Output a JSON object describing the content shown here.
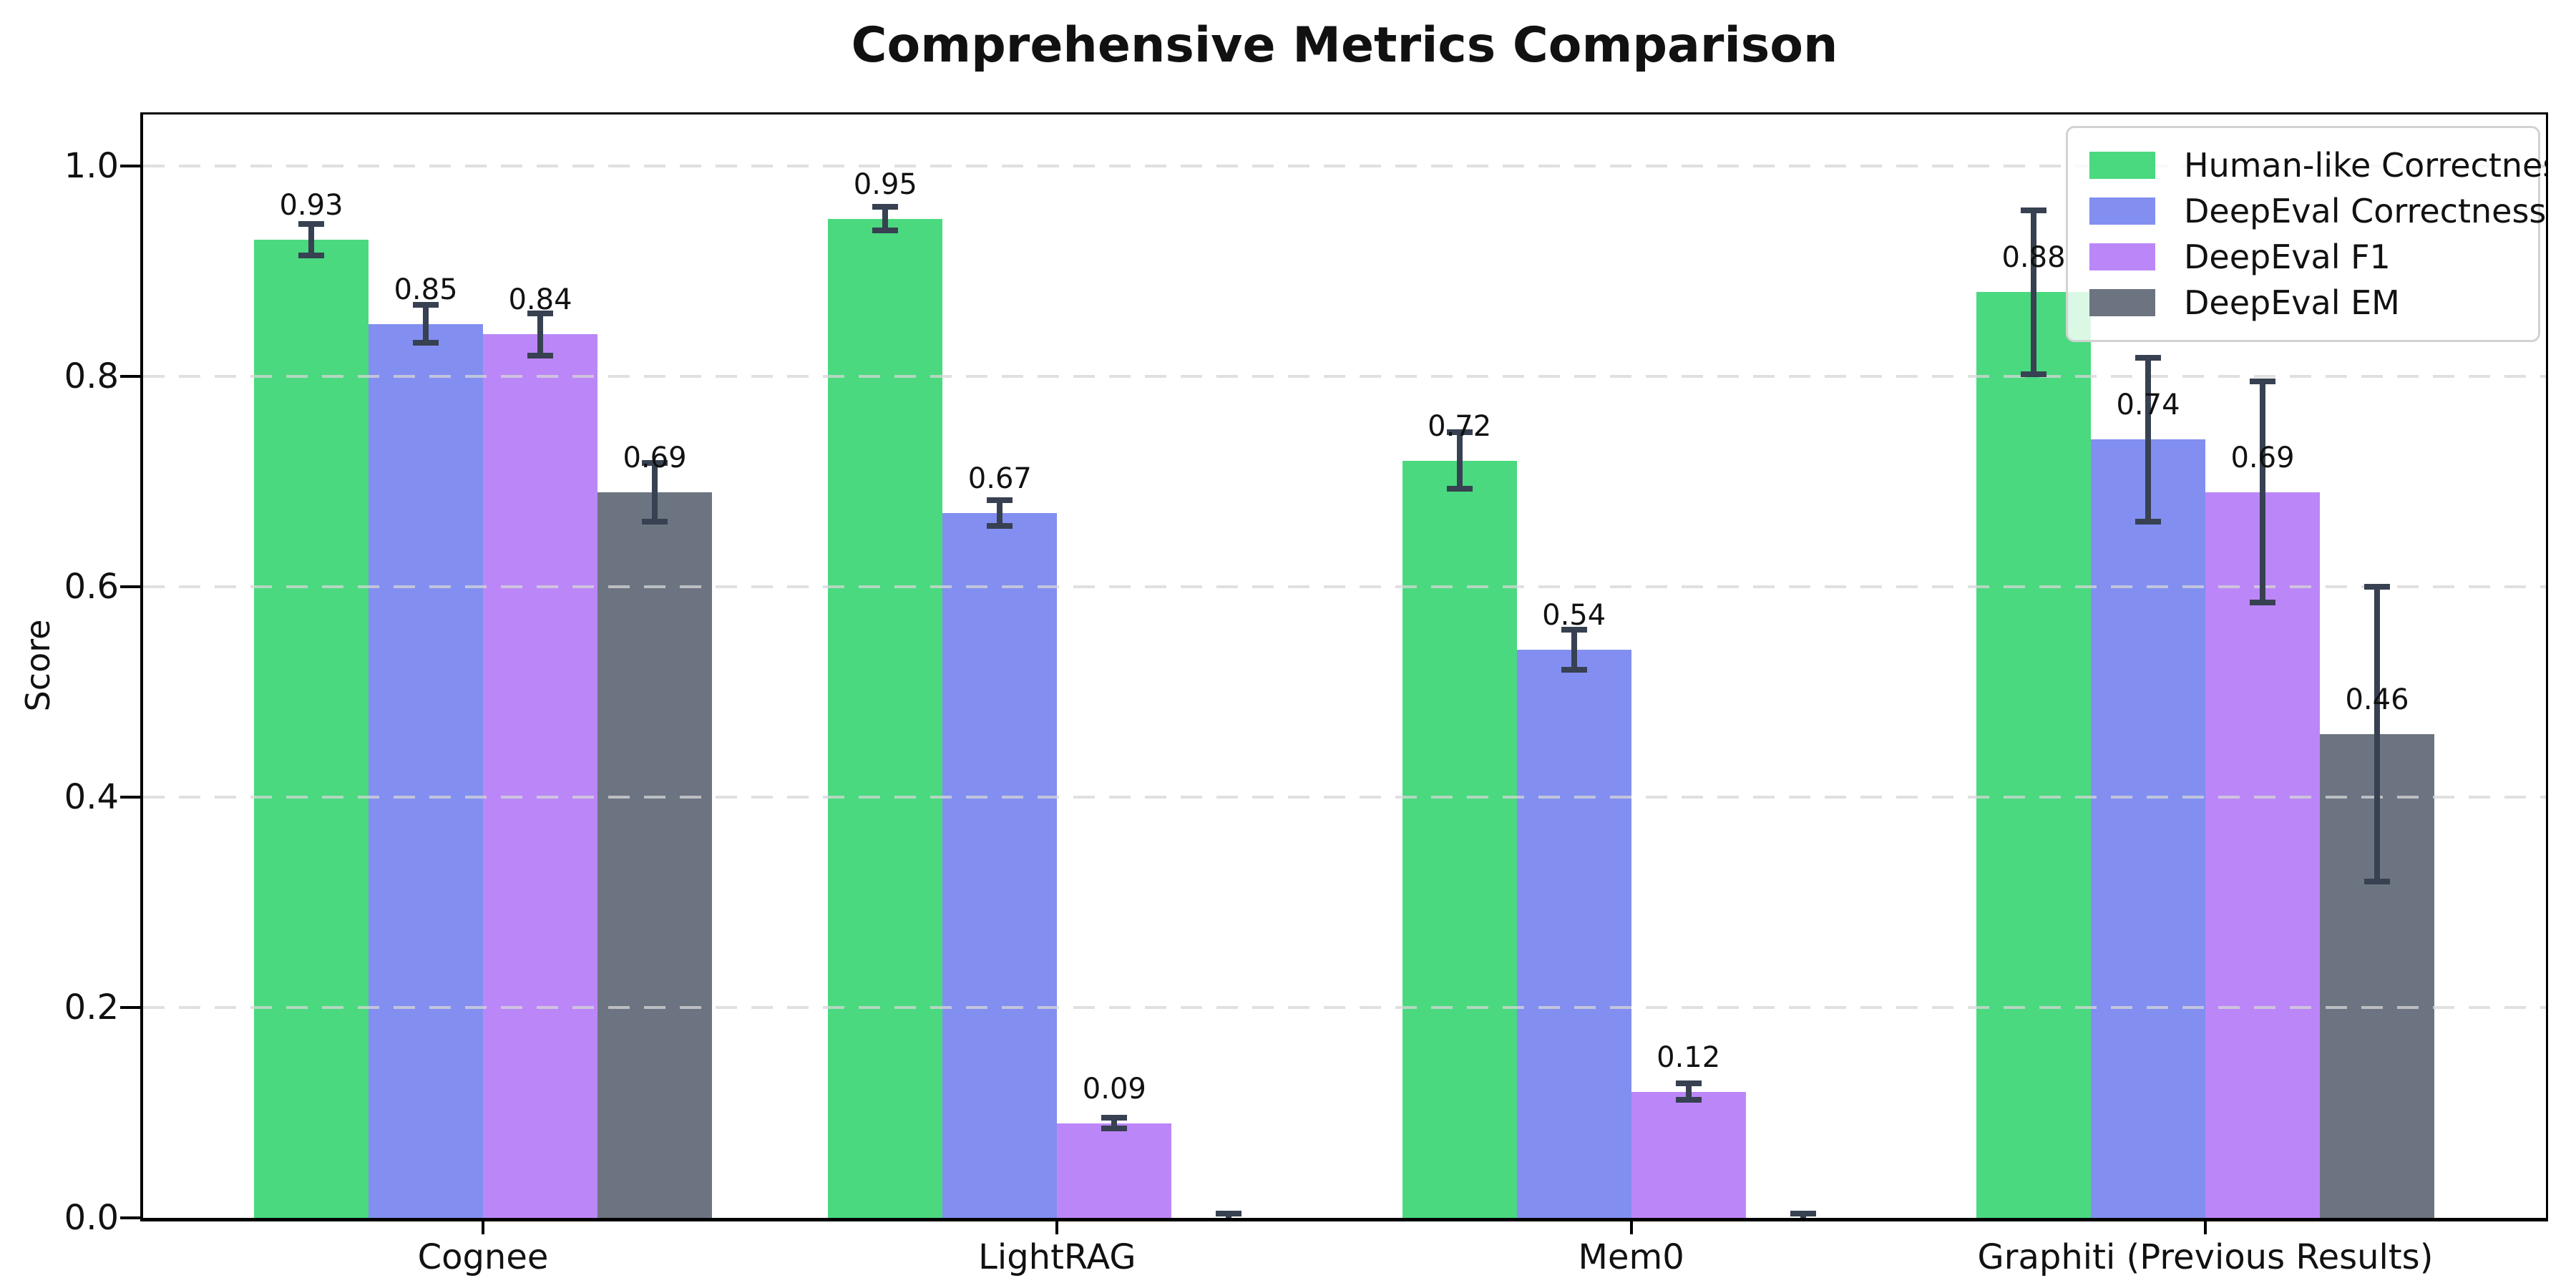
{
  "chart_data": {
    "type": "bar",
    "title": "Comprehensive Metrics Comparison",
    "ylabel": "Score",
    "xlabel": "",
    "categories": [
      "Cognee",
      "LightRAG",
      "Mem0",
      "Graphiti (Previous Results)"
    ],
    "series": [
      {
        "name": "Human-like Correctness",
        "color": "#4ad97f",
        "values": [
          0.93,
          0.95,
          0.72,
          0.88
        ],
        "errors": [
          0.015,
          0.011,
          0.027,
          0.078
        ],
        "labels": [
          "0.93",
          "0.95",
          "0.72",
          "0.88"
        ]
      },
      {
        "name": "DeepEval Correctness",
        "color": "#828ff0",
        "values": [
          0.85,
          0.67,
          0.54,
          0.74
        ],
        "errors": [
          0.018,
          0.012,
          0.019,
          0.078
        ],
        "labels": [
          "0.85",
          "0.67",
          "0.54",
          "0.74"
        ]
      },
      {
        "name": "DeepEval F1",
        "color": "#bb87f8",
        "values": [
          0.84,
          0.09,
          0.12,
          0.69
        ],
        "errors": [
          0.02,
          0.005,
          0.008,
          0.105
        ],
        "labels": [
          "0.84",
          "0.09",
          "0.12",
          "0.69"
        ]
      },
      {
        "name": "DeepEval EM",
        "color": "#6c7482",
        "values": [
          0.69,
          0.0,
          0.0,
          0.46
        ],
        "errors": [
          0.028,
          0.004,
          0.004,
          0.14
        ],
        "labels": [
          "0.69",
          null,
          null,
          "0.46"
        ]
      }
    ],
    "ylim": [
      0.0,
      1.05
    ],
    "yticks": [
      0.0,
      0.2,
      0.4,
      0.6,
      0.8,
      1.0
    ],
    "ytick_labels": [
      "0.0",
      "0.2",
      "0.4",
      "0.6",
      "0.8",
      "1.0"
    ],
    "grid": "horizontal-dashed",
    "grid_color": "#d9d9d9",
    "error_bar_color": "#374151",
    "legend_position": "upper right",
    "bar_value_label_format": "2-decimals"
  }
}
